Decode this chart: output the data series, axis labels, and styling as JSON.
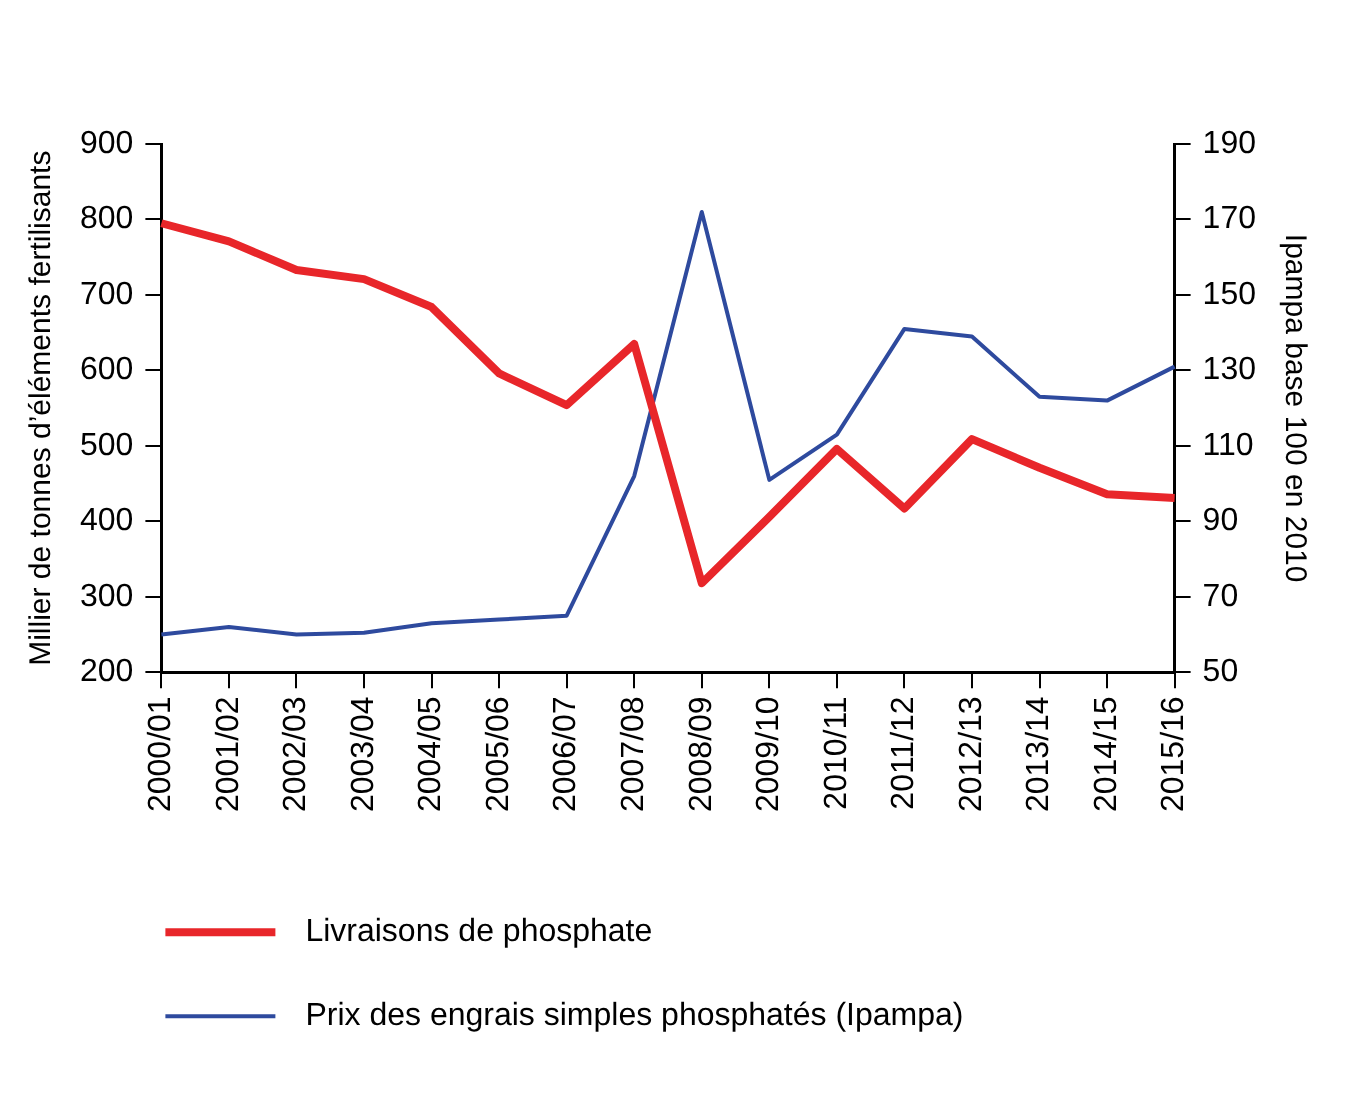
{
  "chart_data": {
    "type": "line",
    "categories": [
      "2000/01",
      "2001/02",
      "2002/03",
      "2003/04",
      "2004/05",
      "2005/06",
      "2006/07",
      "2007/08",
      "2008/09",
      "2009/10",
      "2010/11",
      "2011/12",
      "2012/13",
      "2013/14",
      "2014/15",
      "2015/16"
    ],
    "ylabel": "Millier de tonnes d’éléments fertilisants",
    "y2label": "Ipampa base 100 en 2010",
    "ylim": [
      200,
      900
    ],
    "yticks": [
      200,
      300,
      400,
      500,
      600,
      700,
      800,
      900
    ],
    "y2lim": [
      50,
      190
    ],
    "y2ticks": [
      50,
      70,
      90,
      110,
      130,
      150,
      170,
      190
    ],
    "grid": false,
    "legend": "bottom",
    "marker": "none",
    "line_style": "solid",
    "series": [
      {
        "name": "Livraisons de phosphate",
        "color": "#e8262a",
        "values": [
          795,
          771,
          733,
          721,
          684,
          596,
          554,
          635,
          318,
          406,
          496,
          417,
          509,
          471,
          436,
          431
        ]
      },
      {
        "name": "Prix des engrais simples phosphatés (Ipampa)",
        "color": "#2e4a9e",
        "axis": "y2",
        "values": [
          60,
          62,
          60,
          60.5,
          63,
          64,
          65,
          102,
          172,
          101,
          113,
          141,
          139,
          123,
          122,
          131
        ]
      }
    ]
  }
}
